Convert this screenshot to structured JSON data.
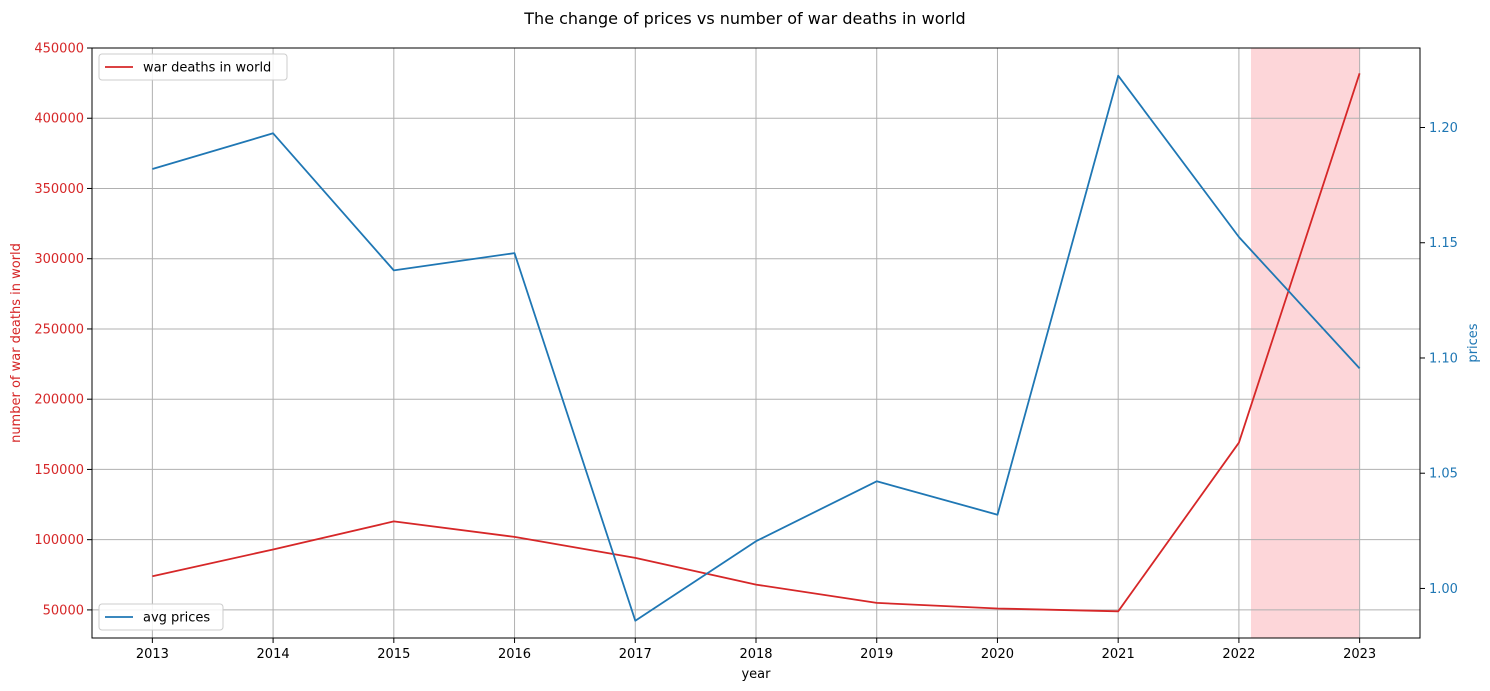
{
  "chart_data": {
    "type": "line",
    "title": "The change of prices vs number of war deaths in world",
    "xlabel": "year",
    "ylabel_left": "number of war deaths in world",
    "ylabel_right": "prices",
    "x": [
      2013,
      2014,
      2015,
      2016,
      2017,
      2018,
      2019,
      2020,
      2021,
      2022,
      2023
    ],
    "x_ticks": [
      "2013",
      "2014",
      "2015",
      "2016",
      "2017",
      "2018",
      "2019",
      "2020",
      "2021",
      "2022",
      "2023"
    ],
    "xlim": [
      2012.5,
      2023.5
    ],
    "ylim_left": [
      30000,
      450000
    ],
    "ylim_right": [
      0.9785,
      1.2345
    ],
    "left_ticks": [
      50000,
      100000,
      150000,
      200000,
      250000,
      300000,
      350000,
      400000,
      450000
    ],
    "left_tick_labels": [
      "50000",
      "100000",
      "150000",
      "200000",
      "250000",
      "300000",
      "350000",
      "400000",
      "450000"
    ],
    "right_ticks": [
      1.0,
      1.05,
      1.1,
      1.15,
      1.2
    ],
    "right_tick_labels": [
      "1.00",
      "1.05",
      "1.10",
      "1.15",
      "1.20"
    ],
    "grid": true,
    "highlight_span": {
      "x_start": 2022.1,
      "x_end": 2023.0,
      "color": "#fdd6d9"
    },
    "series": [
      {
        "name": "war deaths in world",
        "axis": "left",
        "color": "#d62728",
        "values": [
          74000,
          93000,
          113000,
          102000,
          87000,
          68000,
          55000,
          51000,
          49000,
          169000,
          432000
        ]
      },
      {
        "name": "avg prices",
        "axis": "right",
        "color": "#1f77b4",
        "values": [
          1.182,
          1.1975,
          1.138,
          1.1455,
          0.986,
          1.0205,
          1.0465,
          1.032,
          1.2225,
          1.1525,
          1.0955
        ]
      }
    ],
    "legends": [
      {
        "series": "war deaths in world",
        "placement": "upper-left"
      },
      {
        "series": "avg prices",
        "placement": "lower-left"
      }
    ],
    "left_axis_color": "#d62728",
    "right_axis_color": "#1f77b4"
  }
}
